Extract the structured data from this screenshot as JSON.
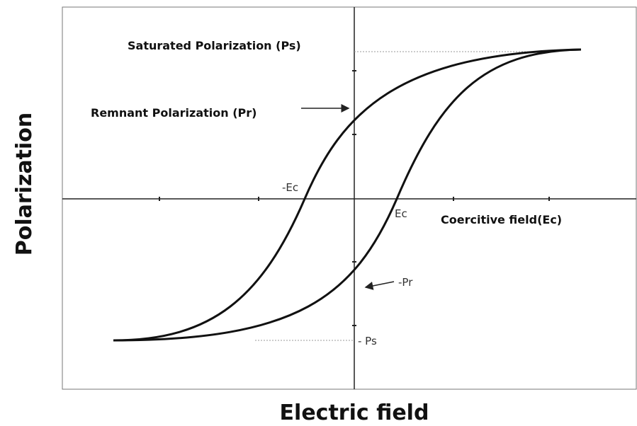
{
  "labels": {
    "saturated": "Saturated Polarization (Ps)",
    "remnant": "Remnant Polarization (Pr)",
    "neg_ec": "-Ec",
    "ec": "Ec",
    "coercitive": "Coercitive field(Ec)",
    "neg_pr": "-Pr",
    "neg_ps": "- Ps"
  },
  "axes": {
    "y_label": "Polarization",
    "x_label": "Electric field"
  }
}
